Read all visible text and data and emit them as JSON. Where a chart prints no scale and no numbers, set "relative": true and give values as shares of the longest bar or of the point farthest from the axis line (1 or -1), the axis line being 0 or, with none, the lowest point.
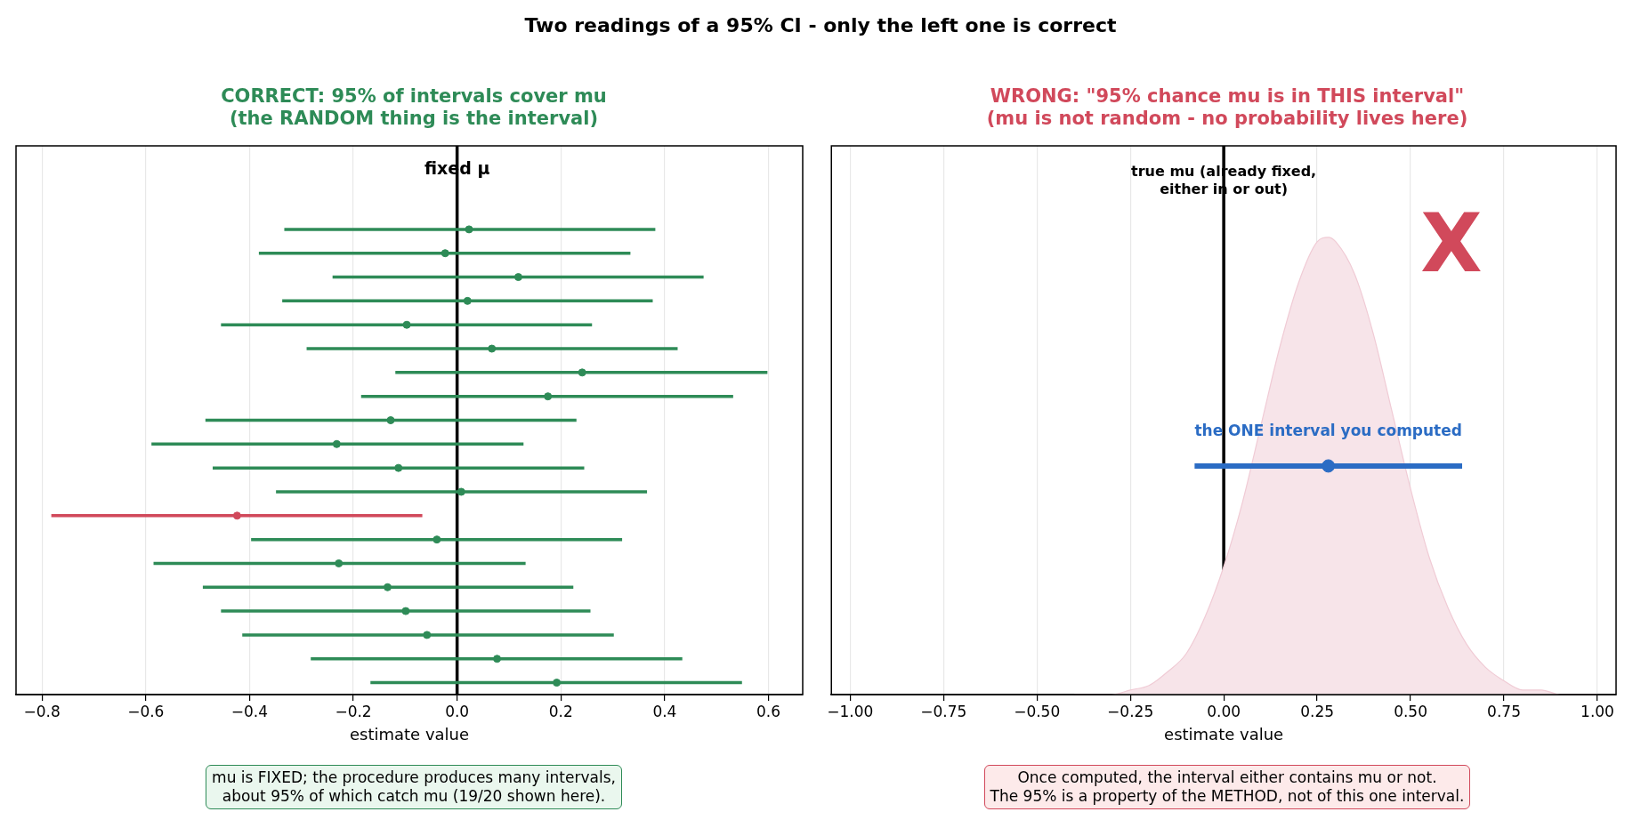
{
  "chart_data": [
    {
      "type": "scatter",
      "orientation": "horizontal",
      "title": "CORRECT: 95% of intervals cover mu\n(the RANDOM thing is the interval)",
      "xlabel": "estimate value",
      "categories": [
        null,
        null,
        null,
        null,
        null,
        null,
        null,
        null,
        null,
        null,
        null,
        null,
        null,
        null,
        null,
        null,
        null,
        null,
        null,
        null,
        null,
        null,
        null
      ],
      "values": [
        null,
        null,
        null,
        0.023,
        -0.023,
        0.118,
        0.02,
        -0.097,
        0.067,
        0.241,
        0.175,
        -0.128,
        -0.232,
        -0.113,
        0.008,
        -0.424,
        -0.039,
        -0.228,
        -0.134,
        -0.099,
        -0.058,
        0.077,
        0.192
      ],
      "errors": [
        null,
        null,
        null,
        [
          -0.333,
          0.382
        ],
        [
          -0.382,
          0.334
        ],
        [
          -0.24,
          0.475
        ],
        [
          -0.337,
          0.377
        ],
        [
          -0.455,
          0.26
        ],
        [
          -0.29,
          0.425
        ],
        [
          -0.119,
          0.598
        ],
        [
          -0.185,
          0.532
        ],
        [
          -0.485,
          0.23
        ],
        [
          -0.589,
          0.128
        ],
        [
          -0.471,
          0.245
        ],
        [
          -0.349,
          0.366
        ],
        [
          -0.782,
          -0.067
        ],
        [
          -0.397,
          0.318
        ],
        [
          -0.585,
          0.132
        ],
        [
          -0.49,
          0.224
        ],
        [
          -0.455,
          0.257
        ],
        [
          -0.414,
          0.302
        ],
        [
          -0.282,
          0.434
        ],
        [
          -0.167,
          0.549
        ]
      ],
      "colors": [
        null,
        null,
        null,
        "#2e8b57",
        "#2e8b57",
        "#2e8b57",
        "#2e8b57",
        "#2e8b57",
        "#2e8b57",
        "#2e8b57",
        "#2e8b57",
        "#2e8b57",
        "#2e8b57",
        "#2e8b57",
        "#2e8b57",
        "#d1495b",
        "#2e8b57",
        "#2e8b57",
        "#2e8b57",
        "#2e8b57",
        "#2e8b57",
        "#2e8b57",
        "#2e8b57"
      ],
      "xlim": [
        -0.85,
        0.666
      ],
      "xticks": [
        {
          "value": -0.8,
          "label": "−0.8"
        },
        {
          "value": -0.6,
          "label": "−0.6"
        },
        {
          "value": -0.4,
          "label": "−0.4"
        },
        {
          "value": -0.2,
          "label": "−0.2"
        },
        {
          "value": 0,
          "label": "0.0"
        },
        {
          "value": 0.2,
          "label": "0.2"
        },
        {
          "value": 0.4,
          "label": "0.4"
        },
        {
          "value": 0.6,
          "label": "0.6"
        }
      ],
      "grid": "x",
      "tick_labels": "x",
      "marker": "circle",
      "legend": false,
      "ref_lines": [
        {
          "axis": "x",
          "value": 0,
          "label": "fixed μ",
          "color": "#000000"
        }
      ],
      "annotations": [
        "Two readings of a 95% CI - only the left one is correct",
        "mu is FIXED; the procedure produces many intervals,\nabout 95% of which catch mu (19/20 shown here)."
      ]
    },
    {
      "type": "area",
      "relative": true,
      "title": "WRONG: \"95% chance mu is in THIS interval\"\n(mu is not random - no probability lives here)",
      "xlabel": "estimate value",
      "xlim": [
        -1.05,
        1.05
      ],
      "xticks": [
        {
          "value": -1,
          "label": "−1.00"
        },
        {
          "value": -0.75,
          "label": "−0.75"
        },
        {
          "value": -0.5,
          "label": "−0.50"
        },
        {
          "value": -0.25,
          "label": "−0.25"
        },
        {
          "value": 0,
          "label": "0.00"
        },
        {
          "value": 0.25,
          "label": "0.25"
        },
        {
          "value": 0.5,
          "label": "0.50"
        },
        {
          "value": 0.75,
          "label": "0.75"
        },
        {
          "value": 1,
          "label": "1.00"
        }
      ],
      "grid": "x",
      "tick_labels": "x",
      "legend": false,
      "series": [
        {
          "type": "area",
          "color": "#f7e4e9",
          "x": [
            -0.4,
            -0.35,
            -0.3,
            -0.25,
            -0.2,
            -0.15,
            -0.1,
            -0.05,
            0,
            0.05,
            0.1,
            0.15,
            0.2,
            0.25,
            0.28,
            0.3,
            0.35,
            0.4,
            0.45,
            0.5,
            0.55,
            0.6,
            0.65,
            0.7,
            0.75,
            0.8,
            0.85,
            0.9,
            0.95,
            1.0
          ],
          "values": [
            0.0,
            0.0,
            0.0,
            0.01,
            0.02,
            0.05,
            0.09,
            0.17,
            0.28,
            0.42,
            0.59,
            0.76,
            0.9,
            0.99,
            1,
            0.99,
            0.92,
            0.79,
            0.62,
            0.45,
            0.3,
            0.19,
            0.11,
            0.06,
            0.03,
            0.01,
            0.01,
            0.0,
            0.0,
            0.0
          ]
        },
        {
          "type": "scatter",
          "name": "the ONE interval you computed",
          "color": "#2b6cc4",
          "x": [
            0.28
          ],
          "values": [
            0.5
          ],
          "xerrors": [
            [
              -0.078,
              0.638
            ]
          ]
        }
      ],
      "ref_lines": [
        {
          "axis": "x",
          "value": 0,
          "label": "true mu (already fixed,\neither in or out)",
          "color": "#000000"
        }
      ],
      "annotations": [
        "X",
        "Once computed, the interval either contains mu or not.\nThe 95% is a property of the METHOD, not of this one interval."
      ]
    }
  ]
}
